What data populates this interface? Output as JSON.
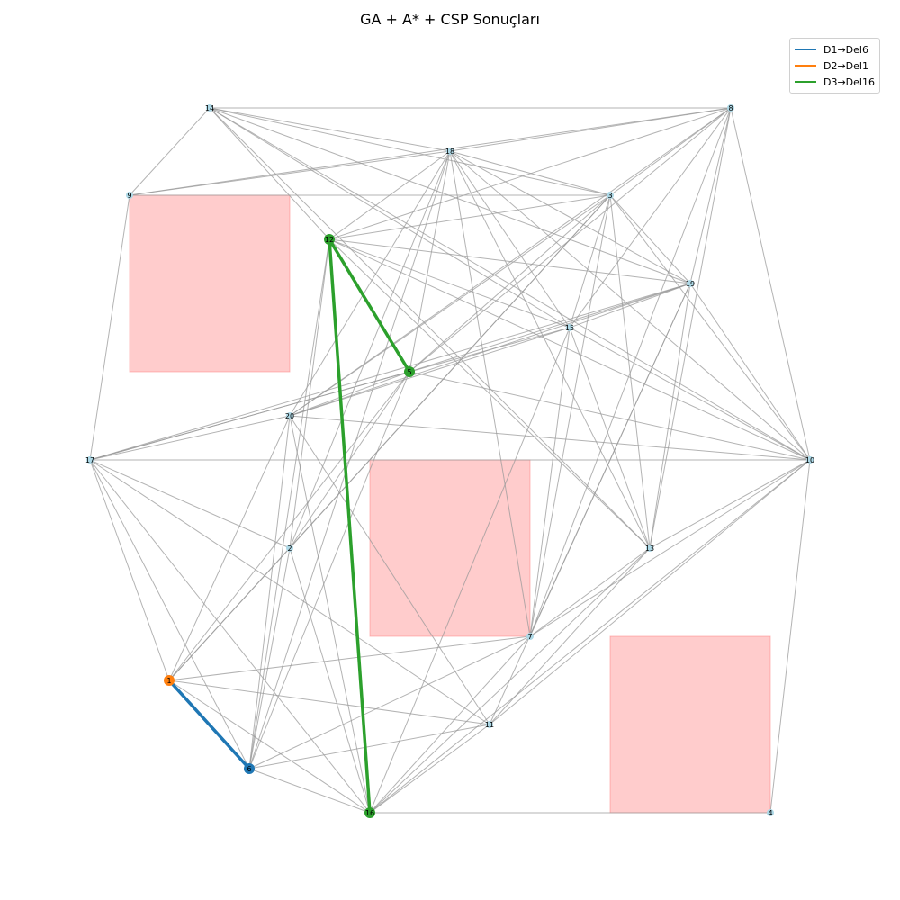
{
  "title": "GA + A* + CSP Sonuçları",
  "legend": [
    {
      "label": "D1→Del6",
      "color": "#1f77b4"
    },
    {
      "label": "D2→Del1",
      "color": "#ff7f0e"
    },
    {
      "label": "D3→Del16",
      "color": "#2ca02c"
    }
  ],
  "colors": {
    "edge": "#999999",
    "node": "#add8e6",
    "obstacle": "#ff9999"
  },
  "nodes": [
    {
      "id": "1",
      "color": "#ff7f0e",
      "highlight": true
    },
    {
      "id": "2"
    },
    {
      "id": "3"
    },
    {
      "id": "4"
    },
    {
      "id": "5",
      "color": "#2ca02c",
      "highlight": true
    },
    {
      "id": "6",
      "color": "#1f77b4",
      "highlight": true
    },
    {
      "id": "7"
    },
    {
      "id": "8"
    },
    {
      "id": "9"
    },
    {
      "id": "10"
    },
    {
      "id": "11"
    },
    {
      "id": "12",
      "color": "#2ca02c",
      "highlight": true
    },
    {
      "id": "13"
    },
    {
      "id": "14"
    },
    {
      "id": "15"
    },
    {
      "id": "16",
      "color": "#2ca02c",
      "highlight": true
    },
    {
      "id": "17"
    },
    {
      "id": "18"
    },
    {
      "id": "19"
    },
    {
      "id": "20"
    }
  ],
  "edges": [
    [
      "14",
      "8"
    ],
    [
      "14",
      "18"
    ],
    [
      "14",
      "9"
    ],
    [
      "14",
      "12"
    ],
    [
      "14",
      "3"
    ],
    [
      "14",
      "19"
    ],
    [
      "14",
      "10"
    ],
    [
      "14",
      "15"
    ],
    [
      "14",
      "13"
    ],
    [
      "8",
      "18"
    ],
    [
      "8",
      "9"
    ],
    [
      "8",
      "3"
    ],
    [
      "8",
      "12"
    ],
    [
      "8",
      "15"
    ],
    [
      "8",
      "19"
    ],
    [
      "8",
      "10"
    ],
    [
      "8",
      "7"
    ],
    [
      "8",
      "13"
    ],
    [
      "8",
      "5"
    ],
    [
      "8",
      "20"
    ],
    [
      "18",
      "9"
    ],
    [
      "18",
      "12"
    ],
    [
      "18",
      "3"
    ],
    [
      "18",
      "19"
    ],
    [
      "18",
      "15"
    ],
    [
      "18",
      "5"
    ],
    [
      "18",
      "20"
    ],
    [
      "18",
      "2"
    ],
    [
      "18",
      "10"
    ],
    [
      "18",
      "13"
    ],
    [
      "18",
      "7"
    ],
    [
      "18",
      "6"
    ],
    [
      "9",
      "3"
    ],
    [
      "9",
      "17"
    ],
    [
      "3",
      "12"
    ],
    [
      "3",
      "19"
    ],
    [
      "3",
      "15"
    ],
    [
      "3",
      "5"
    ],
    [
      "3",
      "20"
    ],
    [
      "3",
      "2"
    ],
    [
      "3",
      "13"
    ],
    [
      "3",
      "7"
    ],
    [
      "3",
      "10"
    ],
    [
      "3",
      "1"
    ],
    [
      "12",
      "19"
    ],
    [
      "12",
      "15"
    ],
    [
      "12",
      "5"
    ],
    [
      "12",
      "10"
    ],
    [
      "12",
      "13"
    ],
    [
      "12",
      "6"
    ],
    [
      "12",
      "2"
    ],
    [
      "19",
      "15"
    ],
    [
      "19",
      "5"
    ],
    [
      "19",
      "17"
    ],
    [
      "19",
      "20"
    ],
    [
      "19",
      "10"
    ],
    [
      "19",
      "13"
    ],
    [
      "19",
      "7"
    ],
    [
      "19",
      "11"
    ],
    [
      "15",
      "17"
    ],
    [
      "15",
      "20"
    ],
    [
      "15",
      "10"
    ],
    [
      "15",
      "13"
    ],
    [
      "15",
      "7"
    ],
    [
      "15",
      "16"
    ],
    [
      "5",
      "17"
    ],
    [
      "5",
      "20"
    ],
    [
      "5",
      "10"
    ],
    [
      "5",
      "2"
    ],
    [
      "5",
      "6"
    ],
    [
      "5",
      "1"
    ],
    [
      "20",
      "17"
    ],
    [
      "20",
      "10"
    ],
    [
      "20",
      "1"
    ],
    [
      "20",
      "6"
    ],
    [
      "20",
      "16"
    ],
    [
      "20",
      "11"
    ],
    [
      "17",
      "10"
    ],
    [
      "17",
      "2"
    ],
    [
      "17",
      "1"
    ],
    [
      "17",
      "6"
    ],
    [
      "17",
      "16"
    ],
    [
      "17",
      "11"
    ],
    [
      "10",
      "13"
    ],
    [
      "10",
      "7"
    ],
    [
      "10",
      "11"
    ],
    [
      "10",
      "16"
    ],
    [
      "10",
      "4"
    ],
    [
      "2",
      "1"
    ],
    [
      "2",
      "6"
    ],
    [
      "2",
      "16"
    ],
    [
      "13",
      "7"
    ],
    [
      "13",
      "11"
    ],
    [
      "13",
      "16"
    ],
    [
      "7",
      "1"
    ],
    [
      "7",
      "16"
    ],
    [
      "7",
      "6"
    ],
    [
      "1",
      "11"
    ],
    [
      "1",
      "16"
    ],
    [
      "11",
      "6"
    ],
    [
      "11",
      "16"
    ],
    [
      "16",
      "4"
    ],
    [
      "16",
      "6"
    ]
  ],
  "routes": [
    {
      "color": "#1f77b4",
      "path": [
        "1",
        "6"
      ]
    },
    {
      "color": "#2ca02c",
      "path": [
        "16",
        "12",
        "5"
      ]
    }
  ]
}
